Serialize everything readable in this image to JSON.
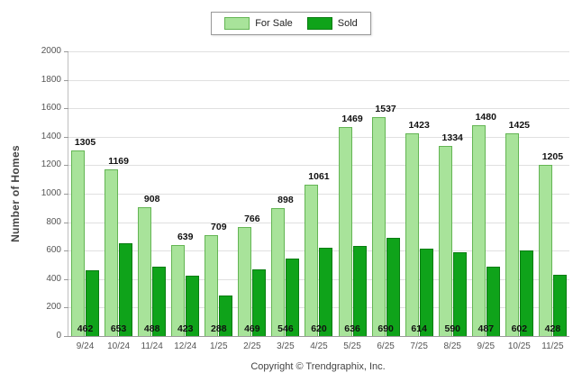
{
  "legend": {
    "for_sale_label": "For Sale",
    "sold_label": "Sold"
  },
  "footer": {
    "copyright": "Copyright © Trendgraphix, Inc."
  },
  "colors": {
    "for_sale": "#a8e39a",
    "for_sale_border": "#64b554",
    "sold": "#0fa31a",
    "sold_border": "#0a7d12",
    "grid": "#e0e0e0",
    "axis": "#9a9a9a"
  },
  "chart_data": {
    "type": "bar",
    "title": "",
    "xlabel": "",
    "ylabel": "Number of Homes",
    "ylim": [
      0,
      2000
    ],
    "ytick_step": 200,
    "grid": true,
    "legend_position": "top",
    "categories": [
      "9/24",
      "10/24",
      "11/24",
      "12/24",
      "1/25",
      "2/25",
      "3/25",
      "4/25",
      "5/25",
      "6/25",
      "7/25",
      "8/25",
      "9/25",
      "10/25",
      "11/25"
    ],
    "series": [
      {
        "name": "For Sale",
        "values": [
          1305,
          1169,
          908,
          639,
          709,
          766,
          898,
          1061,
          1469,
          1537,
          1423,
          1334,
          1480,
          1425,
          1205
        ]
      },
      {
        "name": "Sold",
        "values": [
          462,
          653,
          488,
          423,
          288,
          469,
          546,
          620,
          636,
          690,
          614,
          590,
          487,
          602,
          428
        ]
      }
    ]
  }
}
